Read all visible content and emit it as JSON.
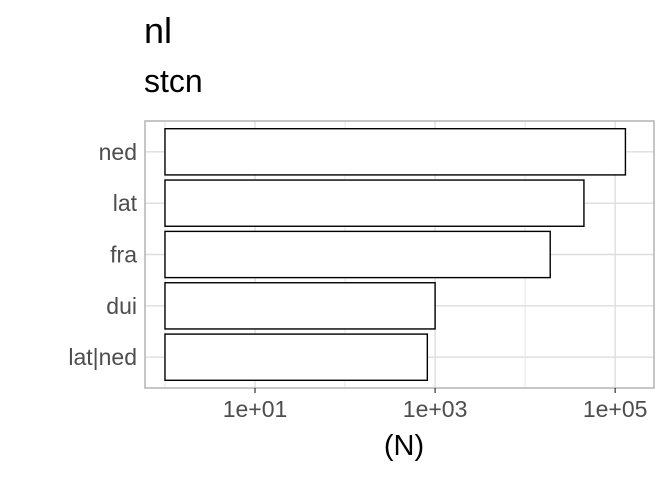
{
  "chart_data": {
    "type": "bar",
    "orientation": "horizontal",
    "title": "nl",
    "subtitle": "stcn",
    "xlabel": "(N)",
    "ylabel": "",
    "x_scale": "log10",
    "xlim": [
      0.6,
      270000
    ],
    "x_ticks": [
      10,
      1000,
      100000
    ],
    "x_tick_labels": [
      "1e+01",
      "1e+03",
      "1e+05"
    ],
    "categories": [
      "ned",
      "lat",
      "fra",
      "dui",
      "lat|ned"
    ],
    "values": [
      130000,
      45000,
      19000,
      1000,
      820
    ],
    "bar_base": 1,
    "bar_fill": "#ffffff",
    "bar_stroke": "#000000",
    "grid": true,
    "panel_border_color": "#b3b3b3",
    "grid_color": "#dedede",
    "legend": "none"
  }
}
